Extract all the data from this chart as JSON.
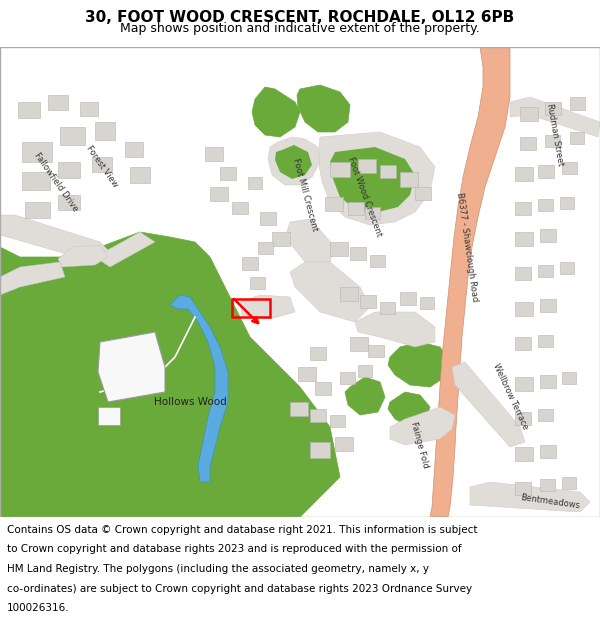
{
  "title_line1": "30, FOOT WOOD CRESCENT, ROCHDALE, OL12 6PB",
  "title_line2": "Map shows position and indicative extent of the property.",
  "footer_lines": [
    "Contains OS data © Crown copyright and database right 2021. This information is subject",
    "to Crown copyright and database rights 2023 and is reproduced with the permission of",
    "HM Land Registry. The polygons (including the associated geometry, namely x, y",
    "co-ordinates) are subject to Crown copyright and database rights 2023 Ordnance Survey",
    "100026316."
  ],
  "map_bg": "#ffffff",
  "green_color": "#6aaa3a",
  "green_dark": "#4a8a2a",
  "road_salmon": "#f0b090",
  "road_salmon_edge": "#d09070",
  "road_grey": "#e0ddd8",
  "building_color": "#d8d5d0",
  "building_edge": "#b8b5b0",
  "blue_river": "#5aabe0",
  "white_bldg": "#f8f8f8",
  "title_fontsize": 11,
  "subtitle_fontsize": 9,
  "footer_fontsize": 7.5,
  "fig_width": 6.0,
  "fig_height": 6.25,
  "dpi": 100
}
